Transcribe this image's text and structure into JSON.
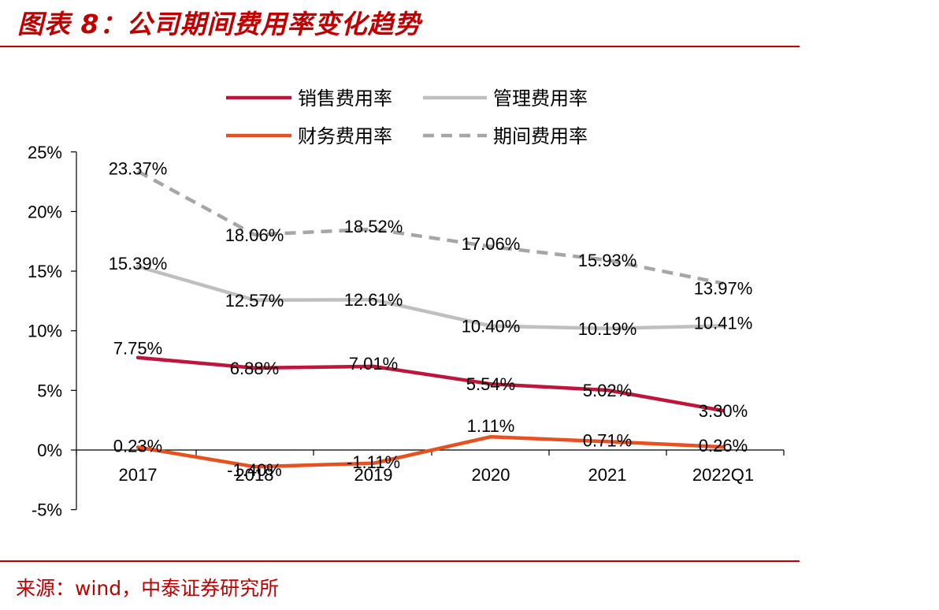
{
  "figure": {
    "title": "图表 8：公司期间费用率变化趋势",
    "source": "来源：wind，中泰证券研究所"
  },
  "chart_data": {
    "type": "line",
    "title": "",
    "xlabel": "",
    "ylabel": "",
    "categories": [
      "2017",
      "2018",
      "2019",
      "2020",
      "2021",
      "2022Q1"
    ],
    "ylim": [
      -5,
      25
    ],
    "yticks": [
      -5,
      0,
      5,
      10,
      15,
      20,
      25
    ],
    "ytick_labels": [
      "-5%",
      "0%",
      "5%",
      "10%",
      "15%",
      "20%",
      "25%"
    ],
    "grid": false,
    "legend_position": "top",
    "series": [
      {
        "name": "销售费用率",
        "values": [
          7.75,
          6.88,
          7.01,
          5.54,
          5.02,
          3.3
        ],
        "labels": [
          "7.75%",
          "6.88%",
          "7.01%",
          "5.54%",
          "5.02%",
          "3.30%"
        ],
        "color": "#c0143c",
        "dash": false
      },
      {
        "name": "管理费用率",
        "values": [
          15.39,
          12.57,
          12.61,
          10.4,
          10.19,
          10.41
        ],
        "labels": [
          "15.39%",
          "12.57%",
          "12.61%",
          "10.40%",
          "10.19%",
          "10.41%"
        ],
        "color": "#bfbfbf",
        "dash": false
      },
      {
        "name": "财务费用率",
        "values": [
          0.23,
          -1.4,
          -1.11,
          1.11,
          0.71,
          0.26
        ],
        "labels": [
          "0.23%",
          "-1.40%",
          "-1.11%",
          "1.11%",
          "0.71%",
          "0.26%"
        ],
        "color": "#e8501e",
        "dash": false
      },
      {
        "name": "期间费用率",
        "values": [
          23.37,
          18.06,
          18.52,
          17.06,
          15.93,
          13.97
        ],
        "labels": [
          "23.37%",
          "18.06%",
          "18.52%",
          "17.06%",
          "15.93%",
          "13.97%"
        ],
        "color": "#a6a6a6",
        "dash": true
      }
    ]
  }
}
